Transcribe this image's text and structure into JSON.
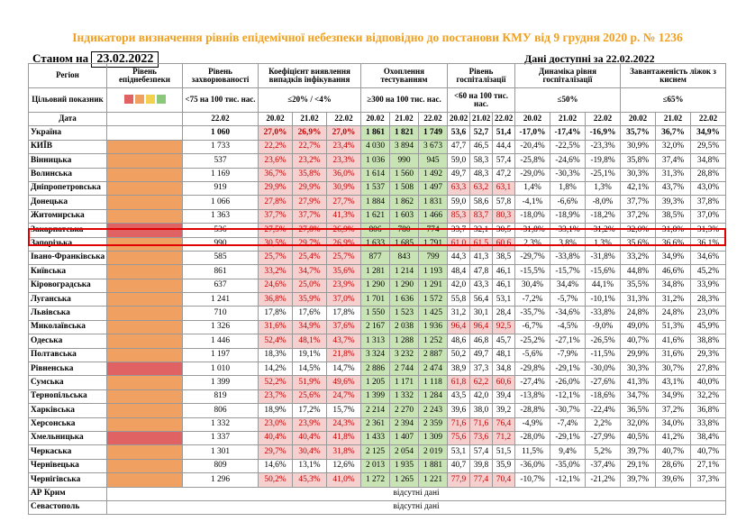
{
  "title": "Індикатори визначення рівнів епідемічної небезпеки відповідно до постанови КМУ від 9 грудня 2020 р. № 1236",
  "as_of_label": "Станом на",
  "as_of_date": "23.02.2022",
  "data_available": "Дані доступні за 22.02.2022",
  "headers": {
    "region": "Регіон",
    "danger_level": "Рівень епіднебезпеки",
    "incidence": "Рівень захворюваності",
    "detection": "Коефіцієнт виявлення випадків інфікування",
    "testing": "Охоплення тестуванням",
    "hospital": "Рівень госпіталізації",
    "dynamics": "Динаміка рівня госпіталізації",
    "oxygen": "Завантаженість ліжок з киснем",
    "target_label": "Цільовий показник",
    "target_incidence": "<75 на 100 тис. нас.",
    "target_detection": "≤20% / <4%",
    "target_testing": "≥300 на 100 тис. нас.",
    "target_hospital": "<60 на 100 тис. нас.",
    "target_dynamics": "≤50%",
    "target_oxygen": "≤65%",
    "date_label": "Дата",
    "date_incidence": "22.02",
    "dates": [
      "20.02",
      "21.02",
      "22.02"
    ]
  },
  "level_colors": [
    "#e06262",
    "#f0a060",
    "#f4d050",
    "#8cc87a"
  ],
  "rows": [
    {
      "name": "Україна",
      "level": "none",
      "inc": "1 060",
      "det": [
        "27,0%",
        "26,9%",
        "27,0%"
      ],
      "tst": [
        "1 861",
        "1 821",
        "1 749"
      ],
      "hosp": [
        "53,6",
        "52,7",
        "51,4"
      ],
      "dyn": [
        "-17,0%",
        "-17,4%",
        "-16,9%"
      ],
      "oxy": [
        "35,7%",
        "36,7%",
        "34,9%"
      ]
    },
    {
      "name": "КИЇВ",
      "level": "o",
      "inc": "1 733",
      "det": [
        "22,2%",
        "22,7%",
        "23,4%"
      ],
      "tst": [
        "4 030",
        "3 894",
        "3 673"
      ],
      "hosp": [
        "47,7",
        "46,5",
        "44,4"
      ],
      "dyn": [
        "-20,4%",
        "-22,5%",
        "-23,3%"
      ],
      "oxy": [
        "30,9%",
        "32,0%",
        "29,5%"
      ]
    },
    {
      "name": "Вінницька",
      "level": "o",
      "inc": "537",
      "det": [
        "23,6%",
        "23,2%",
        "23,3%"
      ],
      "tst": [
        "1 036",
        "990",
        "945"
      ],
      "hosp": [
        "59,0",
        "58,3",
        "57,4"
      ],
      "dyn": [
        "-25,8%",
        "-24,6%",
        "-19,8%"
      ],
      "oxy": [
        "35,8%",
        "37,4%",
        "34,8%"
      ]
    },
    {
      "name": "Волинська",
      "level": "o",
      "inc": "1 169",
      "det": [
        "36,7%",
        "35,8%",
        "36,0%"
      ],
      "tst": [
        "1 614",
        "1 560",
        "1 492"
      ],
      "hosp": [
        "49,7",
        "48,3",
        "47,2"
      ],
      "dyn": [
        "-29,0%",
        "-30,3%",
        "-25,1%"
      ],
      "oxy": [
        "30,3%",
        "31,3%",
        "28,8%"
      ]
    },
    {
      "name": "Дніпропетровська",
      "level": "o",
      "inc": "919",
      "det": [
        "29,9%",
        "29,9%",
        "30,9%"
      ],
      "tst": [
        "1 537",
        "1 508",
        "1 497"
      ],
      "hosp": [
        "63,3",
        "63,2",
        "63,1"
      ],
      "dyn": [
        "1,4%",
        "1,8%",
        "1,3%"
      ],
      "oxy": [
        "42,1%",
        "43,7%",
        "43,0%"
      ]
    },
    {
      "name": "Донецька",
      "level": "o",
      "inc": "1 066",
      "det": [
        "27,8%",
        "27,9%",
        "27,7%"
      ],
      "tst": [
        "1 884",
        "1 862",
        "1 831"
      ],
      "hosp": [
        "59,0",
        "58,6",
        "57,8"
      ],
      "dyn": [
        "-4,1%",
        "-6,6%",
        "-8,0%"
      ],
      "oxy": [
        "37,7%",
        "39,3%",
        "37,8%"
      ]
    },
    {
      "name": "Житомирська",
      "level": "o",
      "inc": "1 363",
      "det": [
        "37,7%",
        "37,7%",
        "41,3%"
      ],
      "tst": [
        "1 621",
        "1 603",
        "1 466"
      ],
      "hosp": [
        "85,3",
        "83,7",
        "80,3"
      ],
      "dyn": [
        "-18,0%",
        "-18,9%",
        "-18,2%"
      ],
      "oxy": [
        "37,2%",
        "38,5%",
        "37,0%"
      ]
    },
    {
      "name": "Закарпатська",
      "level": "r",
      "inc": "536",
      "det": [
        "27,5%",
        "27,8%",
        "26,9%"
      ],
      "tst": [
        "806",
        "780",
        "774"
      ],
      "hosp": [
        "33,7",
        "32,1",
        "30,5"
      ],
      "dyn": [
        "-31,8%",
        "-33,1%",
        "-31,2%"
      ],
      "oxy": [
        "32,0%",
        "31,8%",
        "31,3%"
      ]
    },
    {
      "name": "Запорізька",
      "level": "o",
      "inc": "990",
      "det": [
        "30,5%",
        "29,7%",
        "26,9%"
      ],
      "tst": [
        "1 633",
        "1 685",
        "1 791"
      ],
      "hosp": [
        "61,0",
        "61,5",
        "60,6"
      ],
      "dyn": [
        "2,3%",
        "3,8%",
        "1,3%"
      ],
      "oxy": [
        "35,6%",
        "36,6%",
        "36,1%"
      ]
    },
    {
      "name": "Івано-Франківська",
      "level": "o",
      "inc": "585",
      "det": [
        "25,7%",
        "25,4%",
        "25,7%"
      ],
      "tst": [
        "877",
        "843",
        "799"
      ],
      "hosp": [
        "44,3",
        "41,3",
        "38,5"
      ],
      "dyn": [
        "-29,7%",
        "-33,8%",
        "-31,8%"
      ],
      "oxy": [
        "33,2%",
        "34,9%",
        "34,6%"
      ]
    },
    {
      "name": "Київська",
      "level": "o",
      "inc": "861",
      "det": [
        "33,2%",
        "34,7%",
        "35,6%"
      ],
      "tst": [
        "1 281",
        "1 214",
        "1 193"
      ],
      "hosp": [
        "48,4",
        "47,8",
        "46,1"
      ],
      "dyn": [
        "-15,5%",
        "-15,7%",
        "-15,6%"
      ],
      "oxy": [
        "44,8%",
        "46,6%",
        "45,2%"
      ]
    },
    {
      "name": "Кіровоградська",
      "level": "o",
      "inc": "637",
      "det": [
        "24,6%",
        "25,0%",
        "23,9%"
      ],
      "tst": [
        "1 290",
        "1 290",
        "1 291"
      ],
      "hosp": [
        "42,0",
        "43,3",
        "46,1"
      ],
      "dyn": [
        "30,4%",
        "34,4%",
        "44,1%"
      ],
      "oxy": [
        "35,5%",
        "34,8%",
        "33,9%"
      ]
    },
    {
      "name": "Луганська",
      "level": "o",
      "inc": "1 241",
      "det": [
        "36,8%",
        "35,9%",
        "37,0%"
      ],
      "tst": [
        "1 701",
        "1 636",
        "1 572"
      ],
      "hosp": [
        "55,8",
        "56,4",
        "53,1"
      ],
      "dyn": [
        "-7,2%",
        "-5,7%",
        "-10,1%"
      ],
      "oxy": [
        "31,3%",
        "31,2%",
        "28,3%"
      ]
    },
    {
      "name": "Львівська",
      "level": "o",
      "inc": "710",
      "det": [
        "17,8%",
        "17,6%",
        "17,8%"
      ],
      "tst": [
        "1 550",
        "1 523",
        "1 425"
      ],
      "hosp": [
        "31,2",
        "30,1",
        "28,4"
      ],
      "dyn": [
        "-35,7%",
        "-34,6%",
        "-33,8%"
      ],
      "oxy": [
        "24,8%",
        "24,8%",
        "23,0%"
      ]
    },
    {
      "name": "Миколаївська",
      "level": "o",
      "inc": "1 326",
      "det": [
        "31,6%",
        "34,9%",
        "37,6%"
      ],
      "tst": [
        "2 167",
        "2 038",
        "1 936"
      ],
      "hosp": [
        "96,4",
        "96,4",
        "92,5"
      ],
      "dyn": [
        "-6,7%",
        "-4,5%",
        "-9,0%"
      ],
      "oxy": [
        "49,0%",
        "51,3%",
        "45,9%"
      ]
    },
    {
      "name": "Одеська",
      "level": "o",
      "inc": "1 446",
      "det": [
        "52,4%",
        "48,1%",
        "43,7%"
      ],
      "tst": [
        "1 313",
        "1 288",
        "1 252"
      ],
      "hosp": [
        "48,6",
        "46,8",
        "45,7"
      ],
      "dyn": [
        "-25,2%",
        "-27,1%",
        "-26,5%"
      ],
      "oxy": [
        "40,7%",
        "41,6%",
        "38,8%"
      ]
    },
    {
      "name": "Полтавська",
      "level": "o",
      "inc": "1 197",
      "det": [
        "18,3%",
        "19,1%",
        "21,8%"
      ],
      "tst": [
        "3 324",
        "3 232",
        "2 887"
      ],
      "hosp": [
        "50,2",
        "49,7",
        "48,1"
      ],
      "dyn": [
        "-5,6%",
        "-7,9%",
        "-11,5%"
      ],
      "oxy": [
        "29,9%",
        "31,6%",
        "29,3%"
      ]
    },
    {
      "name": "Рівненська",
      "level": "r",
      "inc": "1 010",
      "det": [
        "14,2%",
        "14,5%",
        "14,7%"
      ],
      "tst": [
        "2 886",
        "2 744",
        "2 474"
      ],
      "hosp": [
        "38,9",
        "37,3",
        "34,8"
      ],
      "dyn": [
        "-29,8%",
        "-29,1%",
        "-30,0%"
      ],
      "oxy": [
        "30,3%",
        "30,7%",
        "27,8%"
      ]
    },
    {
      "name": "Сумська",
      "level": "o",
      "inc": "1 399",
      "det": [
        "52,2%",
        "51,9%",
        "49,6%"
      ],
      "tst": [
        "1 205",
        "1 171",
        "1 118"
      ],
      "hosp": [
        "61,8",
        "62,2",
        "60,6"
      ],
      "dyn": [
        "-27,4%",
        "-26,0%",
        "-27,6%"
      ],
      "oxy": [
        "41,3%",
        "43,1%",
        "40,0%"
      ]
    },
    {
      "name": "Тернопільська",
      "level": "o",
      "inc": "819",
      "det": [
        "23,7%",
        "25,6%",
        "24,7%"
      ],
      "tst": [
        "1 399",
        "1 332",
        "1 284"
      ],
      "hosp": [
        "43,5",
        "42,0",
        "39,4"
      ],
      "dyn": [
        "-13,8%",
        "-12,1%",
        "-18,6%"
      ],
      "oxy": [
        "34,7%",
        "34,9%",
        "32,2%"
      ]
    },
    {
      "name": "Харківська",
      "level": "o",
      "inc": "806",
      "det": [
        "18,9%",
        "17,2%",
        "15,7%"
      ],
      "tst": [
        "2 214",
        "2 270",
        "2 243"
      ],
      "hosp": [
        "39,6",
        "38,0",
        "39,2"
      ],
      "dyn": [
        "-28,8%",
        "-30,7%",
        "-22,4%"
      ],
      "oxy": [
        "36,5%",
        "37,2%",
        "36,8%"
      ]
    },
    {
      "name": "Херсонська",
      "level": "o",
      "inc": "1 332",
      "det": [
        "23,0%",
        "23,9%",
        "24,3%"
      ],
      "tst": [
        "2 361",
        "2 394",
        "2 359"
      ],
      "hosp": [
        "71,6",
        "71,6",
        "76,4"
      ],
      "dyn": [
        "-4,9%",
        "-7,4%",
        "2,2%"
      ],
      "oxy": [
        "32,0%",
        "34,0%",
        "33,8%"
      ]
    },
    {
      "name": "Хмельницька",
      "level": "r",
      "inc": "1 337",
      "det": [
        "40,4%",
        "40,4%",
        "41,8%"
      ],
      "tst": [
        "1 433",
        "1 407",
        "1 309"
      ],
      "hosp": [
        "75,6",
        "73,6",
        "71,2"
      ],
      "dyn": [
        "-28,0%",
        "-29,1%",
        "-27,9%"
      ],
      "oxy": [
        "40,5%",
        "41,2%",
        "38,4%"
      ]
    },
    {
      "name": "Черкаська",
      "level": "o",
      "inc": "1 301",
      "det": [
        "29,7%",
        "30,4%",
        "31,8%"
      ],
      "tst": [
        "2 125",
        "2 054",
        "2 019"
      ],
      "hosp": [
        "53,1",
        "57,4",
        "51,5"
      ],
      "dyn": [
        "11,5%",
        "9,4%",
        "5,2%"
      ],
      "oxy": [
        "39,7%",
        "40,7%",
        "40,7%"
      ]
    },
    {
      "name": "Чернівецька",
      "level": "o",
      "inc": "809",
      "det": [
        "14,6%",
        "13,1%",
        "12,6%"
      ],
      "tst": [
        "2 013",
        "1 935",
        "1 881"
      ],
      "hosp": [
        "40,7",
        "39,8",
        "35,9"
      ],
      "dyn": [
        "-36,0%",
        "-35,0%",
        "-37,4%"
      ],
      "oxy": [
        "29,1%",
        "28,6%",
        "27,1%"
      ]
    },
    {
      "name": "Чернігівська",
      "level": "o",
      "inc": "1 296",
      "det": [
        "50,2%",
        "45,3%",
        "41,0%"
      ],
      "tst": [
        "1 272",
        "1 265",
        "1 221"
      ],
      "hosp": [
        "77,9",
        "77,4",
        "70,4"
      ],
      "dyn": [
        "-10,7%",
        "-12,1%",
        "-21,2%"
      ],
      "oxy": [
        "39,7%",
        "39,6%",
        "37,3%"
      ]
    }
  ],
  "absent_rows": [
    {
      "name": "АР Крим",
      "note": "відсутні дані"
    },
    {
      "name": "Севастополь",
      "note": "відсутні дані"
    }
  ]
}
